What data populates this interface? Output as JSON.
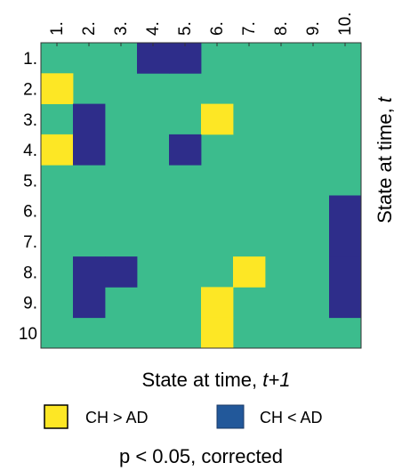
{
  "chart_data": {
    "type": "heatmap",
    "title": "",
    "xlabel": {
      "main": "State at time, ",
      "italic": "t+1"
    },
    "ylabel": {
      "main": "State at time, ",
      "italic": "t"
    },
    "x_categories": [
      "1.",
      "2.",
      "3.",
      "4.",
      "5.",
      "6.",
      "7.",
      "8.",
      "9.",
      "10."
    ],
    "y_categories": [
      "1.",
      "2.",
      "3.",
      "4.",
      "5.",
      "6.",
      "7.",
      "8.",
      "9.",
      "10"
    ],
    "colors": {
      "background": "#3cbc8d",
      "ch_gt_ad": "#fde725",
      "ch_lt_ad": "#2e2d8a",
      "legend_ch_lt_ad": "#22589a"
    },
    "cells": [
      {
        "row": 1,
        "col": 4,
        "value": "CH < AD"
      },
      {
        "row": 1,
        "col": 5,
        "value": "CH < AD"
      },
      {
        "row": 2,
        "col": 1,
        "value": "CH > AD"
      },
      {
        "row": 3,
        "col": 2,
        "value": "CH < AD"
      },
      {
        "row": 3,
        "col": 6,
        "value": "CH > AD"
      },
      {
        "row": 4,
        "col": 1,
        "value": "CH > AD"
      },
      {
        "row": 4,
        "col": 2,
        "value": "CH < AD"
      },
      {
        "row": 4,
        "col": 5,
        "value": "CH < AD"
      },
      {
        "row": 6,
        "col": 10,
        "value": "CH < AD"
      },
      {
        "row": 7,
        "col": 10,
        "value": "CH < AD"
      },
      {
        "row": 8,
        "col": 2,
        "value": "CH < AD"
      },
      {
        "row": 8,
        "col": 3,
        "value": "CH < AD"
      },
      {
        "row": 8,
        "col": 7,
        "value": "CH > AD"
      },
      {
        "row": 8,
        "col": 10,
        "value": "CH < AD"
      },
      {
        "row": 9,
        "col": 2,
        "value": "CH < AD"
      },
      {
        "row": 9,
        "col": 6,
        "value": "CH > AD"
      },
      {
        "row": 9,
        "col": 10,
        "value": "CH < AD"
      },
      {
        "row": 10,
        "col": 6,
        "value": "CH > AD"
      }
    ],
    "legend": [
      {
        "label": "CH > AD",
        "key": "ch_gt_ad"
      },
      {
        "label": "CH < AD",
        "key": "ch_lt_ad"
      }
    ],
    "note": "p < 0.05, corrected"
  }
}
